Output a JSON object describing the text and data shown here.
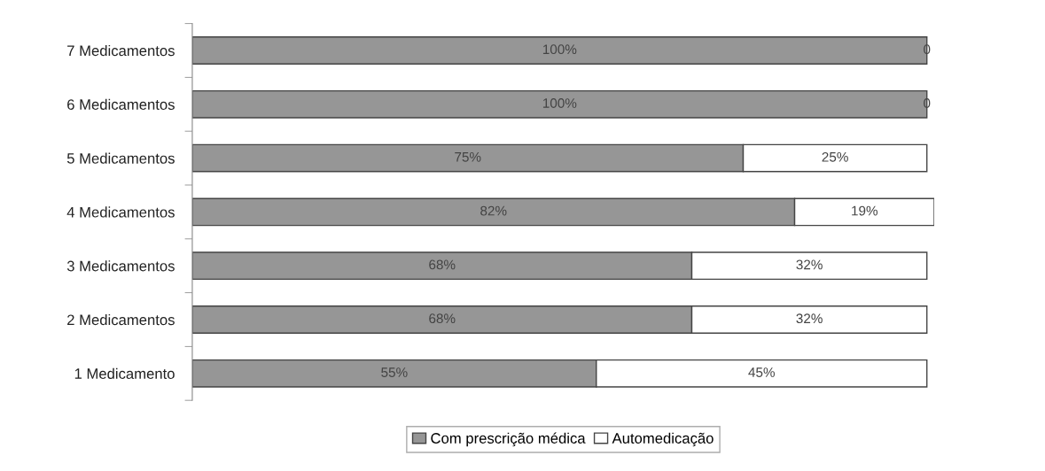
{
  "chart_data": {
    "type": "bar",
    "orientation": "horizontal",
    "stacked": true,
    "legend": "bottom",
    "categories": [
      "7 Medicamentos",
      "6 Medicamentos",
      "5 Medicamentos",
      "4 Medicamentos",
      "3 Medicamentos",
      "2 Medicamentos",
      "1 Medicamento"
    ],
    "series": [
      {
        "name": "Com prescrição médica",
        "color": "#969696",
        "values": [
          100,
          100,
          75,
          82,
          68,
          68,
          55
        ],
        "value_labels": [
          "100%",
          "100%",
          "75%",
          "82%",
          "68%",
          "68%",
          "55%"
        ]
      },
      {
        "name": "Automedicação",
        "color": "#ffffff",
        "values": [
          0,
          0,
          25,
          19,
          32,
          32,
          45
        ],
        "value_labels": [
          "0",
          "0",
          "25%",
          "19%",
          "32%",
          "32%",
          "45%"
        ]
      }
    ]
  }
}
